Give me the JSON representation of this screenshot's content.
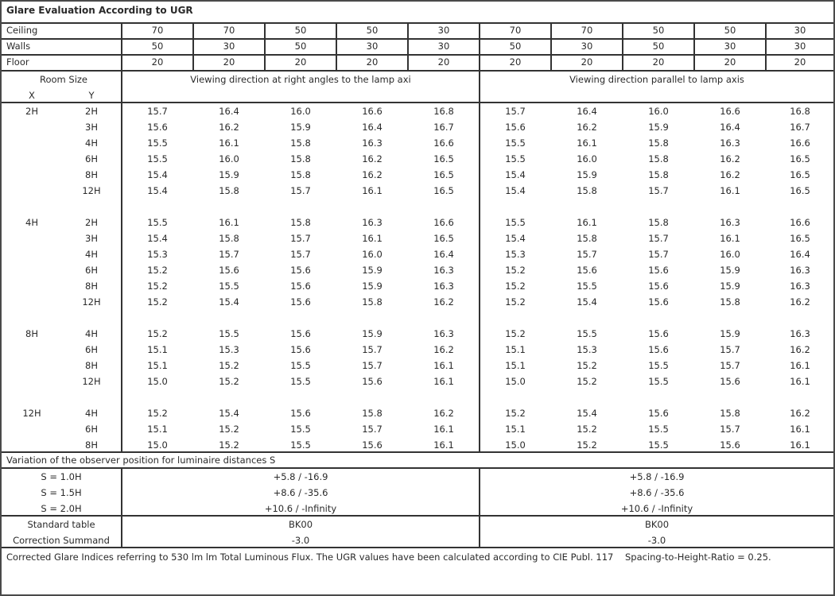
{
  "title": "Glare Evaluation According to UGR",
  "reflectances": [
    {
      "label": "Ceiling",
      "values": [
        "70",
        "70",
        "50",
        "50",
        "30",
        "70",
        "70",
        "50",
        "50",
        "30"
      ]
    },
    {
      "label": "Walls",
      "values": [
        "50",
        "30",
        "50",
        "30",
        "30",
        "50",
        "30",
        "50",
        "30",
        "30"
      ]
    },
    {
      "label": "Floor",
      "values": [
        "20",
        "20",
        "20",
        "20",
        "20",
        "20",
        "20",
        "20",
        "20",
        "20"
      ]
    }
  ],
  "room_size_label": "Room Size",
  "x_label": "X",
  "y_label": "Y",
  "direction_right_angles": "Viewing direction at right angles to the lamp axi",
  "direction_parallel": "Viewing direction parallel to lamp axis",
  "groups": [
    {
      "x": "2H",
      "rows": [
        {
          "y": "2H",
          "values": [
            "15.7",
            "16.4",
            "16.0",
            "16.6",
            "16.8",
            "15.7",
            "16.4",
            "16.0",
            "16.6",
            "16.8"
          ]
        },
        {
          "y": "3H",
          "values": [
            "15.6",
            "16.2",
            "15.9",
            "16.4",
            "16.7",
            "15.6",
            "16.2",
            "15.9",
            "16.4",
            "16.7"
          ]
        },
        {
          "y": "4H",
          "values": [
            "15.5",
            "16.1",
            "15.8",
            "16.3",
            "16.6",
            "15.5",
            "16.1",
            "15.8",
            "16.3",
            "16.6"
          ]
        },
        {
          "y": "6H",
          "values": [
            "15.5",
            "16.0",
            "15.8",
            "16.2",
            "16.5",
            "15.5",
            "16.0",
            "15.8",
            "16.2",
            "16.5"
          ]
        },
        {
          "y": "8H",
          "values": [
            "15.4",
            "15.9",
            "15.8",
            "16.2",
            "16.5",
            "15.4",
            "15.9",
            "15.8",
            "16.2",
            "16.5"
          ]
        },
        {
          "y": "12H",
          "values": [
            "15.4",
            "15.8",
            "15.7",
            "16.1",
            "16.5",
            "15.4",
            "15.8",
            "15.7",
            "16.1",
            "16.5"
          ]
        }
      ]
    },
    {
      "x": "4H",
      "rows": [
        {
          "y": "2H",
          "values": [
            "15.5",
            "16.1",
            "15.8",
            "16.3",
            "16.6",
            "15.5",
            "16.1",
            "15.8",
            "16.3",
            "16.6"
          ]
        },
        {
          "y": "3H",
          "values": [
            "15.4",
            "15.8",
            "15.7",
            "16.1",
            "16.5",
            "15.4",
            "15.8",
            "15.7",
            "16.1",
            "16.5"
          ]
        },
        {
          "y": "4H",
          "values": [
            "15.3",
            "15.7",
            "15.7",
            "16.0",
            "16.4",
            "15.3",
            "15.7",
            "15.7",
            "16.0",
            "16.4"
          ]
        },
        {
          "y": "6H",
          "values": [
            "15.2",
            "15.6",
            "15.6",
            "15.9",
            "16.3",
            "15.2",
            "15.6",
            "15.6",
            "15.9",
            "16.3"
          ]
        },
        {
          "y": "8H",
          "values": [
            "15.2",
            "15.5",
            "15.6",
            "15.9",
            "16.3",
            "15.2",
            "15.5",
            "15.6",
            "15.9",
            "16.3"
          ]
        },
        {
          "y": "12H",
          "values": [
            "15.2",
            "15.4",
            "15.6",
            "15.8",
            "16.2",
            "15.2",
            "15.4",
            "15.6",
            "15.8",
            "16.2"
          ]
        }
      ]
    },
    {
      "x": "8H",
      "rows": [
        {
          "y": "4H",
          "values": [
            "15.2",
            "15.5",
            "15.6",
            "15.9",
            "16.3",
            "15.2",
            "15.5",
            "15.6",
            "15.9",
            "16.3"
          ]
        },
        {
          "y": "6H",
          "values": [
            "15.1",
            "15.3",
            "15.6",
            "15.7",
            "16.2",
            "15.1",
            "15.3",
            "15.6",
            "15.7",
            "16.2"
          ]
        },
        {
          "y": "8H",
          "values": [
            "15.1",
            "15.2",
            "15.5",
            "15.7",
            "16.1",
            "15.1",
            "15.2",
            "15.5",
            "15.7",
            "16.1"
          ]
        },
        {
          "y": "12H",
          "values": [
            "15.0",
            "15.2",
            "15.5",
            "15.6",
            "16.1",
            "15.0",
            "15.2",
            "15.5",
            "15.6",
            "16.1"
          ]
        }
      ]
    },
    {
      "x": "12H",
      "rows": [
        {
          "y": "4H",
          "values": [
            "15.2",
            "15.4",
            "15.6",
            "15.8",
            "16.2",
            "15.2",
            "15.4",
            "15.6",
            "15.8",
            "16.2"
          ]
        },
        {
          "y": "6H",
          "values": [
            "15.1",
            "15.2",
            "15.5",
            "15.7",
            "16.1",
            "15.1",
            "15.2",
            "15.5",
            "15.7",
            "16.1"
          ]
        },
        {
          "y": "8H",
          "values": [
            "15.0",
            "15.2",
            "15.5",
            "15.6",
            "16.1",
            "15.0",
            "15.2",
            "15.5",
            "15.6",
            "16.1"
          ]
        }
      ]
    }
  ],
  "variation_heading": "Variation of the observer position for luminaire distances S",
  "variation_rows": [
    {
      "label": "S = 1.0H",
      "right_angles": "+5.8 / -16.9",
      "parallel": "+5.8 / -16.9"
    },
    {
      "label": "S = 1.5H",
      "right_angles": "+8.6 / -35.6",
      "parallel": "+8.6 / -35.6"
    },
    {
      "label": "S = 2.0H",
      "right_angles": "+10.6 / -Infinity",
      "parallel": "+10.6 / -Infinity"
    }
  ],
  "standard_table": {
    "label": "Standard table",
    "right_angles": "BK00",
    "parallel": "BK00"
  },
  "correction_summand": {
    "label": "Correction Summand",
    "right_angles": "-3.0",
    "parallel": "-3.0"
  },
  "footnote": "Corrected Glare Indices referring to 530 lm lm Total Luminous Flux. The UGR values have been calculated according to CIE Publ. 117    Spacing-to-Height-Ratio = 0.25."
}
